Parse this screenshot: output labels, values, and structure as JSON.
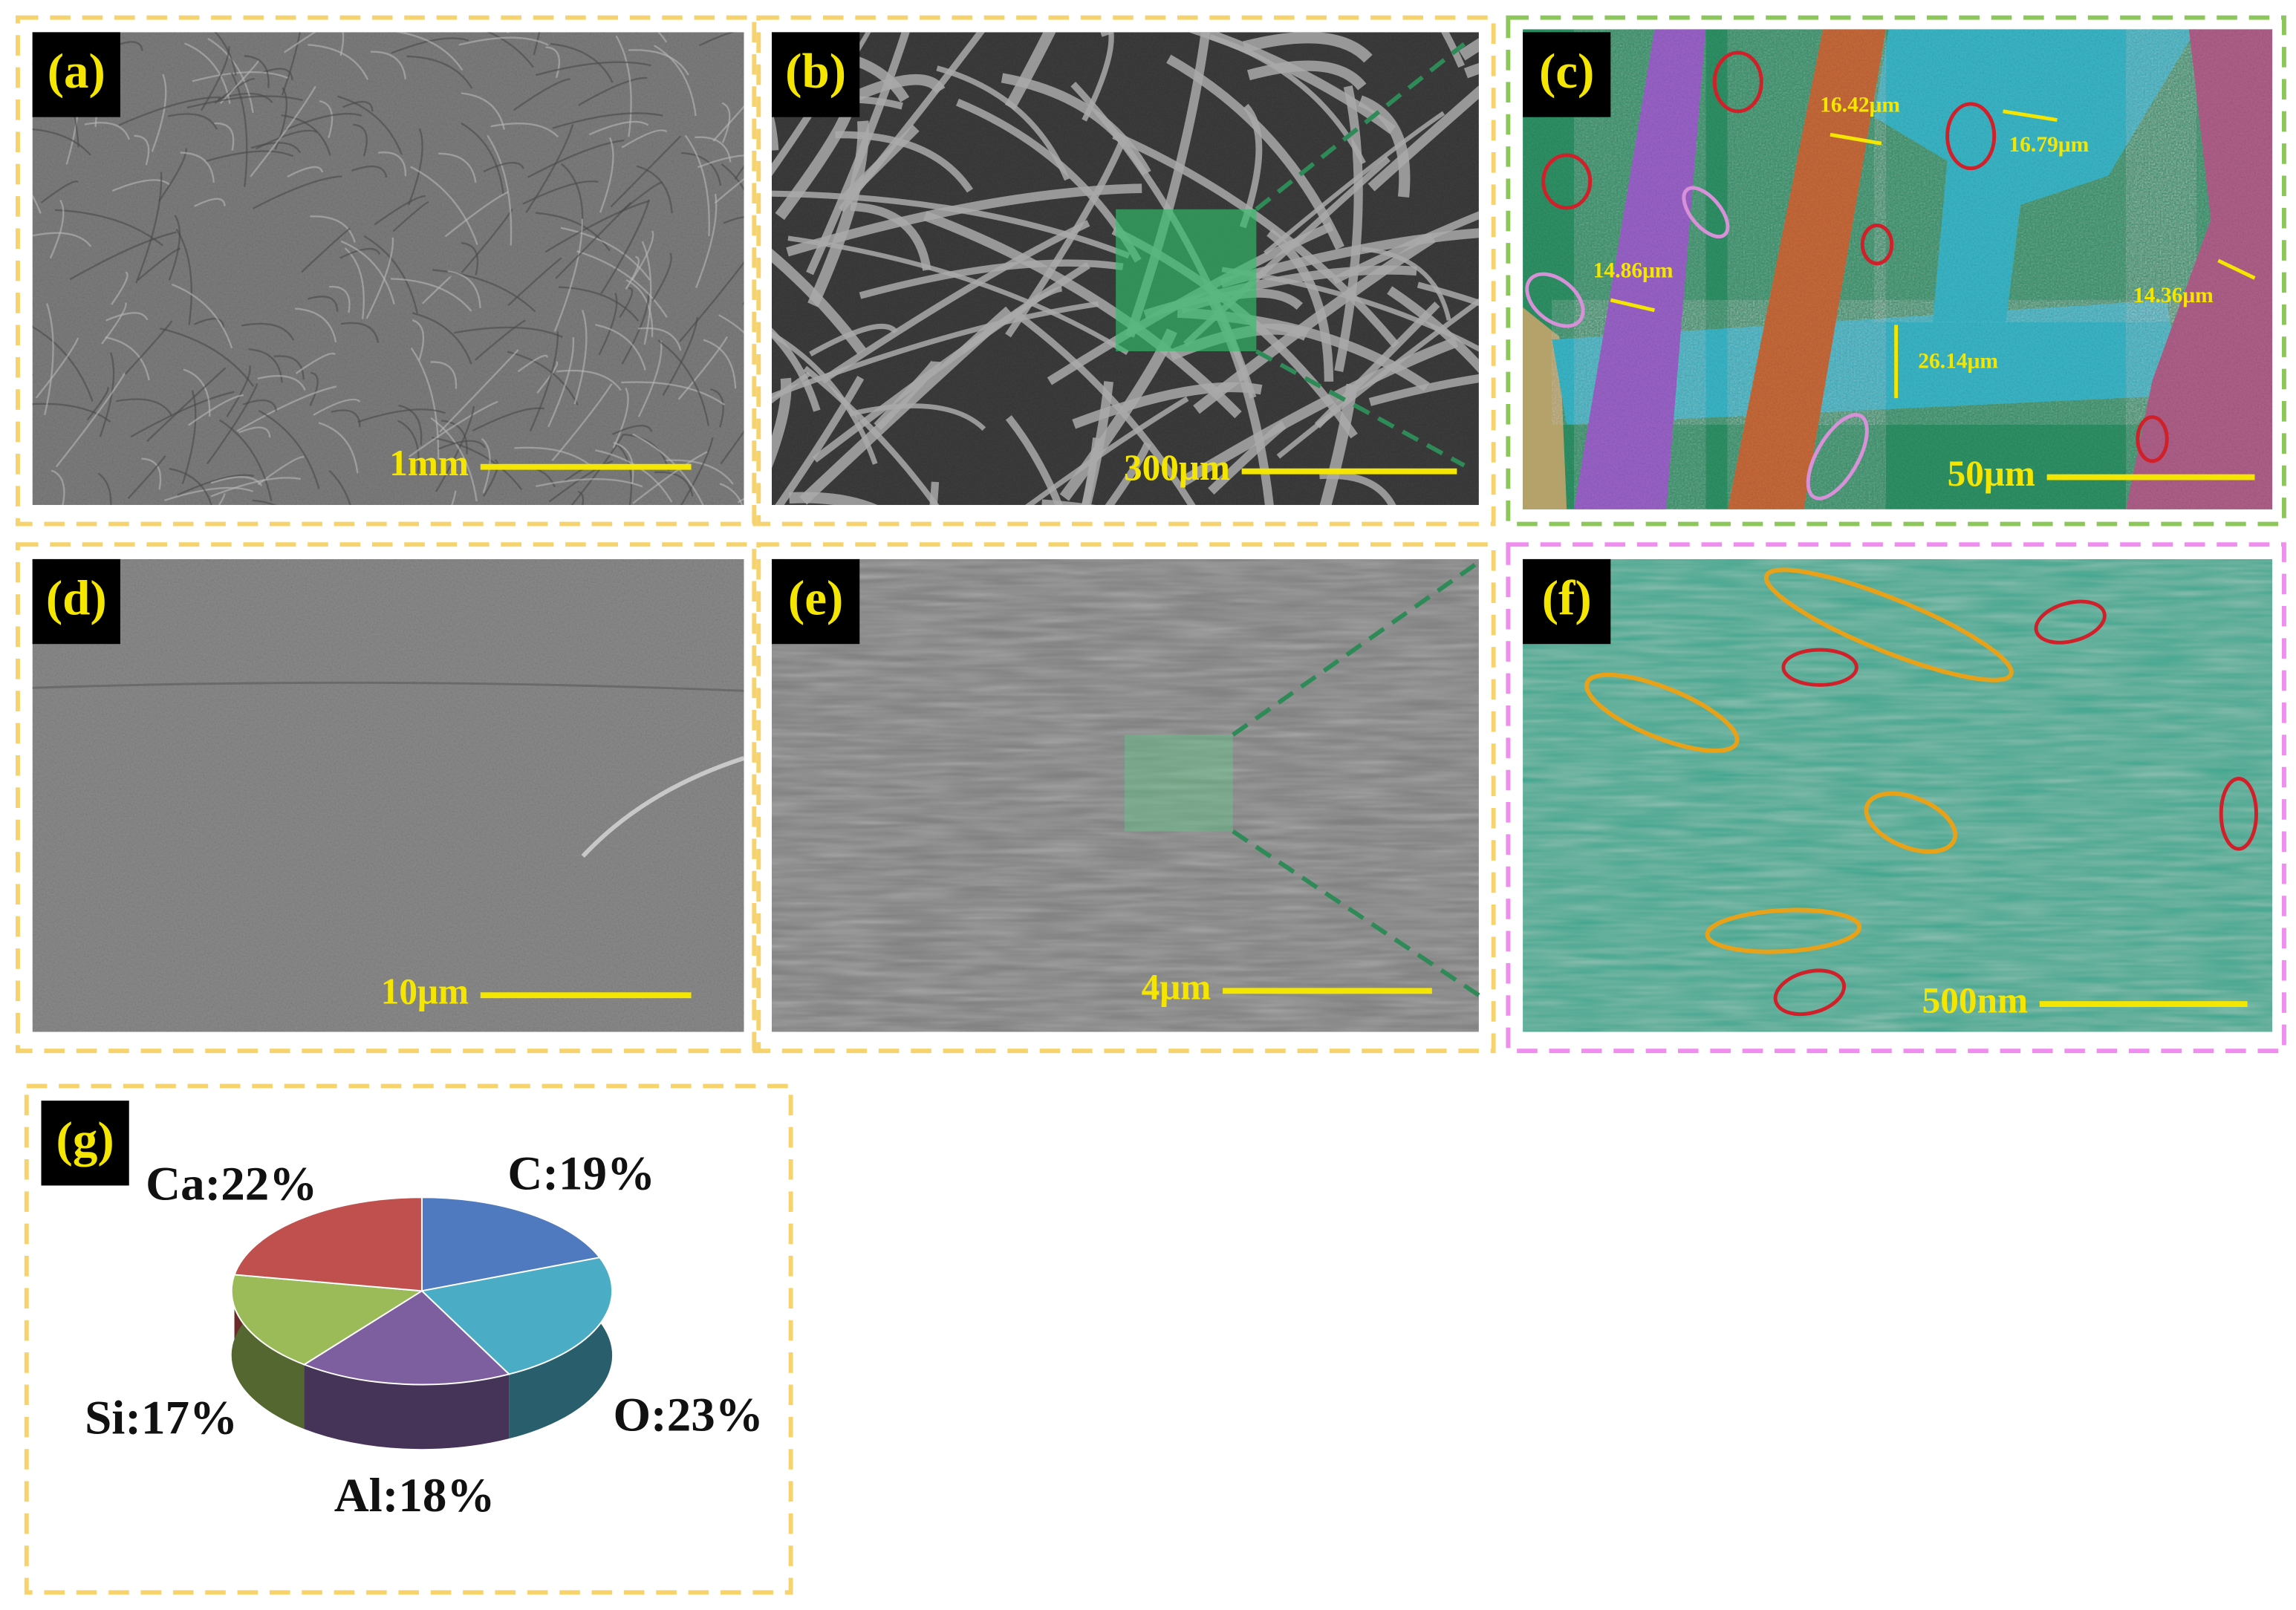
{
  "panels": [
    {
      "label": "(a)",
      "scale_bar": "1mm"
    },
    {
      "label": "(b)",
      "scale_bar": "300μm"
    },
    {
      "label": "(c)",
      "scale_bar": "50μm",
      "measurements": [
        "16.42μm",
        "16.79μm",
        "14.86μm",
        "14.36μm",
        "26.14μm"
      ]
    },
    {
      "label": "(d)",
      "scale_bar": "10μm"
    },
    {
      "label": "(e)",
      "scale_bar": "4μm"
    },
    {
      "label": "(f)",
      "scale_bar": "500nm"
    },
    {
      "label": "(g)"
    }
  ],
  "chart_data": {
    "type": "pie",
    "values": [
      19,
      23,
      18,
      17,
      22
    ],
    "value_labels": [
      "C:19%",
      "O:23%",
      "Al:18%",
      "Si:17%",
      "Ca:22%"
    ],
    "colors": [
      "#4f7abf",
      "#4bacc6",
      "#7d5fa0",
      "#9bbb59",
      "#c0504d"
    ]
  }
}
